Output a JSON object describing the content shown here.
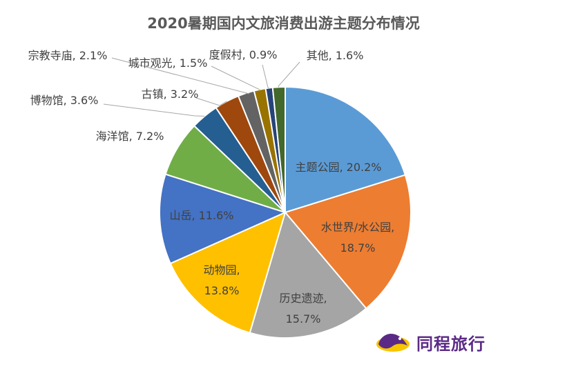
{
  "chart_data": {
    "type": "pie",
    "title": "2020暑期国内文旅消费出游主题分布情况",
    "categories": [
      "主题公园",
      "水世界/水公园",
      "历史遗迹",
      "动物园",
      "山岳",
      "海洋馆",
      "博物馆",
      "古镇",
      "宗教寺庙",
      "城市观光",
      "度假村",
      "其他"
    ],
    "values": [
      20.2,
      18.7,
      15.7,
      13.8,
      11.6,
      7.2,
      3.6,
      3.2,
      2.1,
      1.5,
      0.9,
      1.6
    ],
    "labels": [
      "主题公园, 20.2%",
      "水世界/水公园,",
      "18.7%",
      "历史遗迹,",
      "15.7%",
      "动物园,",
      "13.8%",
      "山岳, 11.6%",
      "海洋馆, 7.2%",
      "博物馆, 3.6%",
      "古镇, 3.2%",
      "宗教寺庙, 2.1%",
      "城市观光, 1.5%",
      "度假村, 0.9%",
      "其他, 1.6%"
    ],
    "colors": [
      "#5b9bd5",
      "#ed7d31",
      "#a5a5a5",
      "#ffc000",
      "#4472c4",
      "#70ad47",
      "#255e91",
      "#9e480e",
      "#636363",
      "#997300",
      "#264478",
      "#43682b"
    ],
    "legend": "none"
  },
  "logo": {
    "text": "同程旅行"
  }
}
